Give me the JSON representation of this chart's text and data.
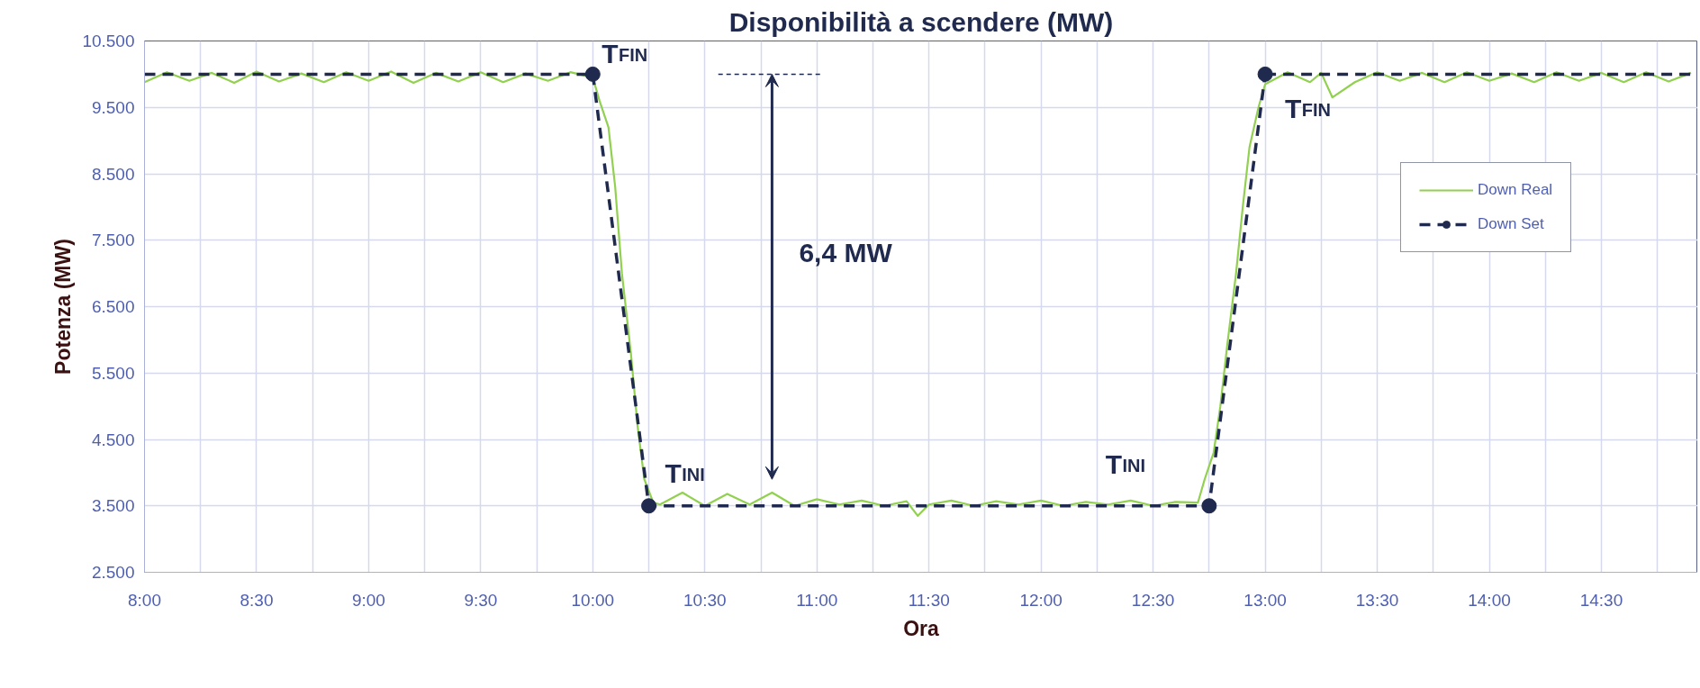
{
  "chart_data": {
    "type": "line",
    "title": "Disponibilità a scendere (MW)",
    "xlabel": "Ora",
    "ylabel": "Potenza (MW)",
    "xlim": [
      8,
      14.93
    ],
    "ylim": [
      2500,
      10500
    ],
    "xticks": [
      {
        "value": 8,
        "label": "8:00"
      },
      {
        "value": 8.25,
        "label": null
      },
      {
        "value": 8.5,
        "label": "8:30"
      },
      {
        "value": 8.75,
        "label": null
      },
      {
        "value": 9,
        "label": "9:00"
      },
      {
        "value": 9.25,
        "label": null
      },
      {
        "value": 9.5,
        "label": "9:30"
      },
      {
        "value": 9.75,
        "label": null
      },
      {
        "value": 10,
        "label": "10:00"
      },
      {
        "value": 10.25,
        "label": null
      },
      {
        "value": 10.5,
        "label": "10:30"
      },
      {
        "value": 10.75,
        "label": null
      },
      {
        "value": 11,
        "label": "11:00"
      },
      {
        "value": 11.25,
        "label": null
      },
      {
        "value": 11.5,
        "label": "11:30"
      },
      {
        "value": 11.75,
        "label": null
      },
      {
        "value": 12,
        "label": "12:00"
      },
      {
        "value": 12.25,
        "label": null
      },
      {
        "value": 12.5,
        "label": "12:30"
      },
      {
        "value": 12.75,
        "label": null
      },
      {
        "value": 13,
        "label": "13:00"
      },
      {
        "value": 13.25,
        "label": null
      },
      {
        "value": 13.5,
        "label": "13:30"
      },
      {
        "value": 13.75,
        "label": null
      },
      {
        "value": 14,
        "label": "14:00"
      },
      {
        "value": 14.25,
        "label": null
      },
      {
        "value": 14.5,
        "label": "14:30"
      },
      {
        "value": 14.75,
        "label": null
      }
    ],
    "yticks": [
      {
        "value": 2500,
        "label": "2.500"
      },
      {
        "value": 3500,
        "label": "3.500"
      },
      {
        "value": 4500,
        "label": "4.500"
      },
      {
        "value": 5500,
        "label": "5.500"
      },
      {
        "value": 6500,
        "label": "6.500"
      },
      {
        "value": 7500,
        "label": "7.500"
      },
      {
        "value": 8500,
        "label": "8.500"
      },
      {
        "value": 9500,
        "label": "9.500"
      },
      {
        "value": 10500,
        "label": "10.500"
      }
    ],
    "grid": true,
    "legend": "top right",
    "series": [
      {
        "name": "Down Real",
        "color": "#92d050",
        "line_style": "solid",
        "marker": "none",
        "x": [
          8.0,
          8.1,
          8.2,
          8.3,
          8.4,
          8.5,
          8.6,
          8.7,
          8.8,
          8.9,
          9.0,
          9.1,
          9.2,
          9.3,
          9.4,
          9.5,
          9.6,
          9.7,
          9.8,
          9.9,
          10.0,
          10.03,
          10.07,
          10.1,
          10.13,
          10.17,
          10.2,
          10.23,
          10.27,
          10.3,
          10.4,
          10.5,
          10.6,
          10.7,
          10.8,
          10.9,
          11.0,
          11.1,
          11.2,
          11.3,
          11.4,
          11.45,
          11.5,
          11.6,
          11.7,
          11.8,
          11.9,
          12.0,
          12.1,
          12.2,
          12.3,
          12.4,
          12.5,
          12.6,
          12.7,
          12.73,
          12.77,
          12.8,
          12.83,
          12.87,
          12.9,
          12.93,
          12.97,
          13.0,
          13.1,
          13.2,
          13.25,
          13.3,
          13.4,
          13.5,
          13.6,
          13.7,
          13.8,
          13.9,
          14.0,
          14.1,
          14.2,
          14.3,
          14.4,
          14.5,
          14.6,
          14.7,
          14.8,
          14.9
        ],
        "values": [
          9880,
          10030,
          9900,
          10020,
          9870,
          10040,
          9890,
          10010,
          9880,
          10030,
          9900,
          10040,
          9870,
          10020,
          9890,
          10030,
          9880,
          10010,
          9900,
          10030,
          9950,
          9600,
          9200,
          8300,
          7000,
          5800,
          4700,
          3900,
          3550,
          3520,
          3700,
          3500,
          3680,
          3520,
          3700,
          3500,
          3600,
          3520,
          3580,
          3500,
          3570,
          3350,
          3520,
          3580,
          3500,
          3570,
          3520,
          3580,
          3500,
          3560,
          3520,
          3580,
          3500,
          3560,
          3550,
          3900,
          4300,
          5000,
          5900,
          7000,
          8000,
          8900,
          9500,
          9850,
          10030,
          9880,
          10020,
          9650,
          9880,
          10030,
          9900,
          10020,
          9880,
          10030,
          9900,
          10010,
          9880,
          10030,
          9900,
          10020,
          9880,
          10030,
          9890,
          10020
        ]
      },
      {
        "name": "Down Set",
        "color": "#1f2a4e",
        "line_style": "dashed",
        "marker": "circle",
        "x": [
          10,
          10.25,
          12.75,
          13
        ],
        "values": [
          10000,
          3500,
          3500,
          10000
        ]
      },
      {
        "color": "#1f2a4e",
        "line_style": "dashed",
        "marker": "none",
        "x": [
          8,
          10
        ],
        "values": [
          10000,
          10000
        ]
      },
      {
        "color": "#1f2a4e",
        "line_style": "dashed",
        "marker": "none",
        "x": [
          13,
          14.93
        ],
        "values": [
          10000,
          10000
        ]
      },
      {
        "color": "#1f2a4e",
        "line_style": "dotted",
        "marker": "none",
        "x": [
          10.56,
          11.02
        ],
        "values": [
          10000,
          10000
        ]
      }
    ],
    "annotations": [
      {
        "text": "T$_{FIN}$",
        "x": 10,
        "y": 10000
      },
      {
        "text": "T$_{INI}$",
        "x": 10.25,
        "y": 3500
      },
      {
        "text": "T$_{INI}$",
        "x": 12.75,
        "y": 3500
      },
      {
        "text": "T$_{FIN}$",
        "x": 13,
        "y": 10000
      },
      "6,4 MW"
    ]
  }
}
